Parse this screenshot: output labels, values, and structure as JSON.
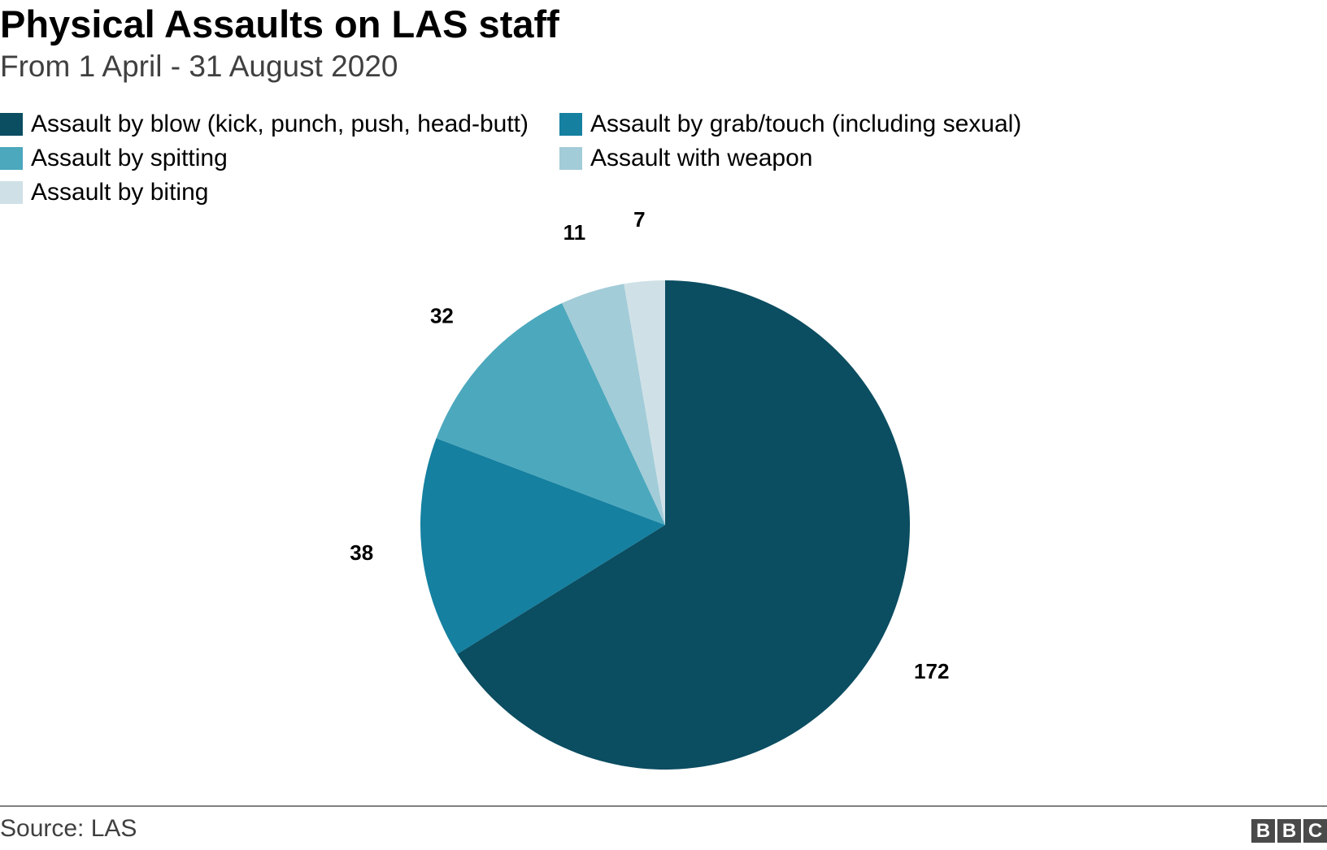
{
  "header": {
    "title": "Physical Assaults on LAS staff",
    "subtitle": "From 1 April - 31 August 2020"
  },
  "chart_data": {
    "type": "pie",
    "categories": [
      "Assault by blow (kick, punch, push, head-butt)",
      "Assault by grab/touch (including sexual)",
      "Assault by spitting",
      "Assault with weapon",
      "Assault by biting"
    ],
    "values": [
      172,
      38,
      32,
      11,
      7
    ],
    "data_labels": [
      "172",
      "38",
      "32",
      "11",
      "7"
    ],
    "colors": [
      "#0b4d61",
      "#1580a0",
      "#4ca8bd",
      "#a2ccd8",
      "#cfe1e7"
    ],
    "start": "12 o'clock",
    "direction": "clockwise",
    "legend_placement": "top"
  },
  "footer": {
    "source": "Source: LAS",
    "logo_letters": [
      "B",
      "B",
      "C"
    ]
  }
}
